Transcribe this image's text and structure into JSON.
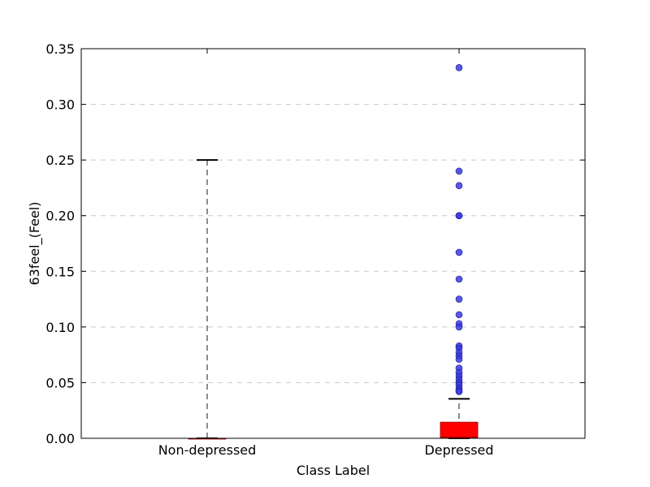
{
  "chart_data": {
    "type": "box",
    "xlabel": "Class Label",
    "ylabel": "63feel_(Feel)",
    "ylim": [
      0,
      0.35
    ],
    "yticks": [
      "0.00",
      "0.05",
      "0.10",
      "0.15",
      "0.20",
      "0.25",
      "0.30",
      "0.35"
    ],
    "grid": "horizontal-dashed",
    "categories": [
      "Non-depressed",
      "Depressed"
    ],
    "boxes": [
      {
        "category": "Non-depressed",
        "q1": 0,
        "median": 0,
        "q3": 0,
        "whisker_low": 0,
        "whisker_high": 0.25,
        "outliers": []
      },
      {
        "category": "Depressed",
        "q1": 0,
        "median": 0.001,
        "q3": 0.0145,
        "whisker_low": 0,
        "whisker_high": 0.0355,
        "outliers": [
          0.333,
          0.24,
          0.227,
          0.2,
          0.2,
          0.167,
          0.143,
          0.125,
          0.111,
          0.103,
          0.1,
          0.083,
          0.081,
          0.077,
          0.074,
          0.071,
          0.063,
          0.059,
          0.056,
          0.053,
          0.05,
          0.048,
          0.045,
          0.043,
          0.042
        ]
      }
    ],
    "colors": {
      "box_fill": "#ff0000",
      "outlier_fill": "#3a3ae6",
      "whisker": "#666666",
      "cap": "#000000",
      "grid": "#c8c8c8"
    }
  }
}
